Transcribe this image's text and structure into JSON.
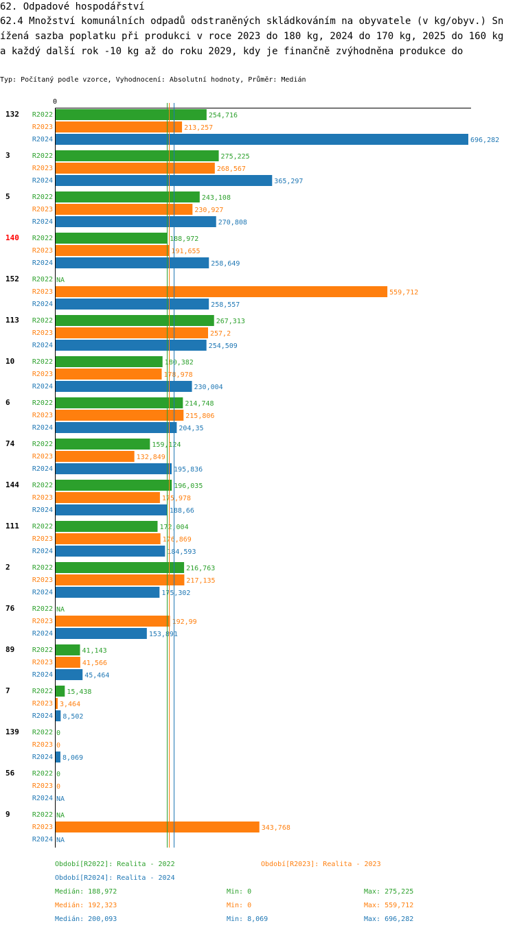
{
  "header": {
    "title": "62. Odpadové hospodářství",
    "subtitle": "62.4 Množství komunálních odpadů odstraněných skládkováním na obyvatele (v kg/obyv.) Snížená sazba poplatku při produkci v roce 2023 do 180 kg, 2024 do 170 kg, 2025 do 160 kg a každý další rok -10 kg až do roku 2029, kdy je finančně zvýhodněna produkce do",
    "info": "Typ: Počítaný podle vzorce, Vyhodnocení: Absolutní hodnoty, Průměr: Medián"
  },
  "colors": {
    "R2022": "#2ca02c",
    "R2023": "#ff7f0e",
    "R2024": "#1f77b4",
    "highlight": "#ff0000"
  },
  "chart_data": {
    "type": "bar",
    "orientation": "horizontal",
    "axis_zero_label": "0",
    "xlim": [
      0,
      696.282
    ],
    "series_names": [
      "R2022",
      "R2023",
      "R2024"
    ],
    "highlighted_category": "140",
    "categories": [
      "132",
      "3",
      "5",
      "140",
      "152",
      "113",
      "10",
      "6",
      "74",
      "144",
      "111",
      "2",
      "76",
      "89",
      "7",
      "139",
      "56",
      "9"
    ],
    "values": [
      {
        "R2022": 254.716,
        "R2023": 213.257,
        "R2024": 696.282,
        "labels": {
          "R2022": "254,716",
          "R2023": "213,257",
          "R2024": "696,282"
        }
      },
      {
        "R2022": 275.225,
        "R2023": 268.567,
        "R2024": 365.297,
        "labels": {
          "R2022": "275,225",
          "R2023": "268,567",
          "R2024": "365,297"
        }
      },
      {
        "R2022": 243.108,
        "R2023": 230.927,
        "R2024": 270.808,
        "labels": {
          "R2022": "243,108",
          "R2023": "230,927",
          "R2024": "270,808"
        }
      },
      {
        "R2022": 188.972,
        "R2023": 191.655,
        "R2024": 258.649,
        "labels": {
          "R2022": "188,972",
          "R2023": "191,655",
          "R2024": "258,649"
        }
      },
      {
        "R2022": null,
        "R2023": 559.712,
        "R2024": 258.557,
        "labels": {
          "R2022": "NA",
          "R2023": "559,712",
          "R2024": "258,557"
        }
      },
      {
        "R2022": 267.313,
        "R2023": 257.2,
        "R2024": 254.509,
        "labels": {
          "R2022": "267,313",
          "R2023": "257,2",
          "R2024": "254,509"
        }
      },
      {
        "R2022": 180.382,
        "R2023": 178.978,
        "R2024": 230.004,
        "labels": {
          "R2022": "180,382",
          "R2023": "178,978",
          "R2024": "230,004"
        }
      },
      {
        "R2022": 214.748,
        "R2023": 215.806,
        "R2024": 204.35,
        "labels": {
          "R2022": "214,748",
          "R2023": "215,806",
          "R2024": "204,35"
        }
      },
      {
        "R2022": 159.124,
        "R2023": 132.849,
        "R2024": 195.836,
        "labels": {
          "R2022": "159,124",
          "R2023": "132,849",
          "R2024": "195,836"
        }
      },
      {
        "R2022": 196.035,
        "R2023": 175.978,
        "R2024": 188.66,
        "labels": {
          "R2022": "196,035",
          "R2023": "175,978",
          "R2024": "188,66"
        }
      },
      {
        "R2022": 172.004,
        "R2023": 176.869,
        "R2024": 184.593,
        "labels": {
          "R2022": "172,004",
          "R2023": "176,869",
          "R2024": "184,593"
        }
      },
      {
        "R2022": 216.763,
        "R2023": 217.135,
        "R2024": 175.302,
        "labels": {
          "R2022": "216,763",
          "R2023": "217,135",
          "R2024": "175,302"
        }
      },
      {
        "R2022": null,
        "R2023": 192.99,
        "R2024": 153.891,
        "labels": {
          "R2022": "NA",
          "R2023": "192,99",
          "R2024": "153,891"
        }
      },
      {
        "R2022": 41.143,
        "R2023": 41.566,
        "R2024": 45.464,
        "labels": {
          "R2022": "41,143",
          "R2023": "41,566",
          "R2024": "45,464"
        }
      },
      {
        "R2022": 15.438,
        "R2023": 3.464,
        "R2024": 8.502,
        "labels": {
          "R2022": "15,438",
          "R2023": "3,464",
          "R2024": "8,502"
        }
      },
      {
        "R2022": 0,
        "R2023": 0,
        "R2024": 8.069,
        "labels": {
          "R2022": "0",
          "R2023": "0",
          "R2024": "8,069"
        }
      },
      {
        "R2022": 0,
        "R2023": 0,
        "R2024": null,
        "labels": {
          "R2022": "0",
          "R2023": "0",
          "R2024": "NA"
        }
      },
      {
        "R2022": null,
        "R2023": 343.768,
        "R2024": null,
        "labels": {
          "R2022": "NA",
          "R2023": "343,768",
          "R2024": "NA"
        }
      }
    ],
    "median_lines": {
      "R2022": 188.972,
      "R2023": 192.323,
      "R2024": 200.093
    }
  },
  "legend": {
    "periods": [
      {
        "key": "R2022",
        "text": "Období[R2022]: Realita - 2022"
      },
      {
        "key": "R2023",
        "text": "Období[R2023]: Realita - 2023"
      },
      {
        "key": "R2024",
        "text": "Období[R2024]: Realita - 2024"
      }
    ],
    "stats": [
      {
        "key": "R2022",
        "median": "Medián: 188,972",
        "min": "Min: 0",
        "max": "Max: 275,225"
      },
      {
        "key": "R2023",
        "median": "Medián: 192,323",
        "min": "Min: 0",
        "max": "Max: 559,712"
      },
      {
        "key": "R2024",
        "median": "Medián: 200,093",
        "min": "Min: 8,069",
        "max": "Max: 696,282"
      }
    ]
  }
}
